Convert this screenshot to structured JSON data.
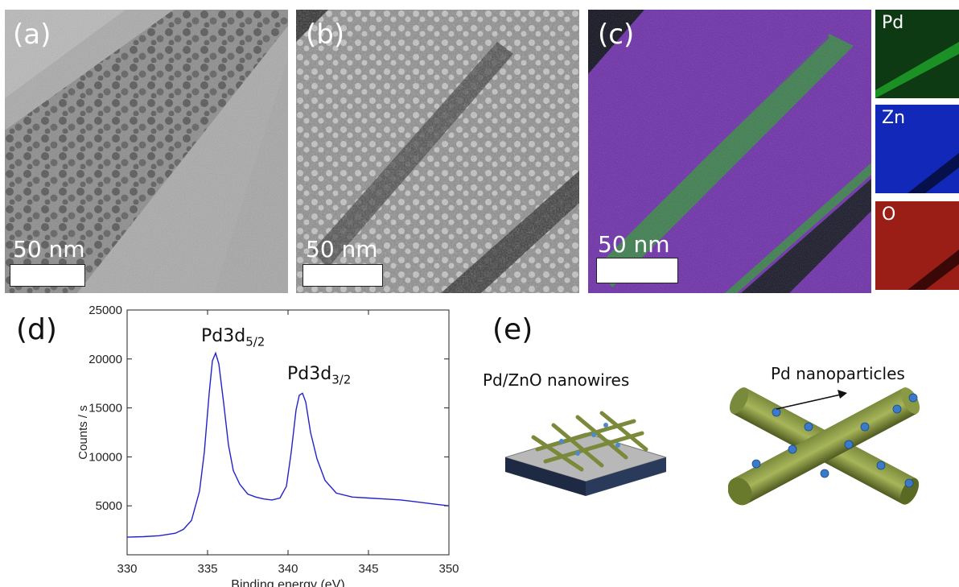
{
  "panels": {
    "a": {
      "label": "(a)",
      "scale": "50 nm"
    },
    "b": {
      "label": "(b)",
      "scale": "50 nm"
    },
    "c": {
      "label": "(c)",
      "scale": "50 nm",
      "maps": [
        {
          "element": "Pd",
          "color": "#18a81f"
        },
        {
          "element": "Zn",
          "color": "#1a2fd6"
        },
        {
          "element": "O",
          "color": "#c8201b"
        }
      ]
    },
    "d": {
      "label": "(d)"
    },
    "e": {
      "label": "(e)",
      "left_caption": "Pd/ZnO  nanowires",
      "right_caption": "Pd nanoparticles"
    }
  },
  "chart_data": {
    "type": "line",
    "xlabel": "Binding energy (eV)",
    "ylabel": "Counts / s",
    "xlim": [
      330,
      350
    ],
    "ylim": [
      0,
      25000
    ],
    "xticks": [
      330,
      335,
      340,
      345,
      350
    ],
    "yticks": [
      5000,
      10000,
      15000,
      20000,
      25000
    ],
    "line_color": "#2222cc",
    "series": [
      {
        "x": [
          330,
          331,
          332,
          333,
          333.5,
          334,
          334.5,
          334.8,
          335.1,
          335.3,
          335.5,
          335.7,
          336,
          336.3,
          336.6,
          337,
          337.5,
          338,
          338.5,
          339,
          339.5,
          339.9,
          340.2,
          340.5,
          340.7,
          340.9,
          341.1,
          341.4,
          341.8,
          342.3,
          343,
          344,
          345,
          346,
          347,
          348,
          349,
          350
        ],
        "y": [
          1800,
          1850,
          1950,
          2200,
          2600,
          3500,
          6500,
          10500,
          16500,
          19800,
          20600,
          19500,
          15500,
          11200,
          8600,
          7200,
          6200,
          5900,
          5700,
          5600,
          5800,
          7000,
          10500,
          14800,
          16300,
          16500,
          15600,
          12500,
          9800,
          7600,
          6300,
          5900,
          5800,
          5700,
          5600,
          5400,
          5200,
          5000
        ]
      }
    ],
    "annotations": [
      {
        "text": "Pd3d",
        "sub": "5/2",
        "x": 335.5,
        "y": 20600
      },
      {
        "text": "Pd3d",
        "sub": "3/2",
        "x": 340.9,
        "y": 16500
      }
    ]
  }
}
